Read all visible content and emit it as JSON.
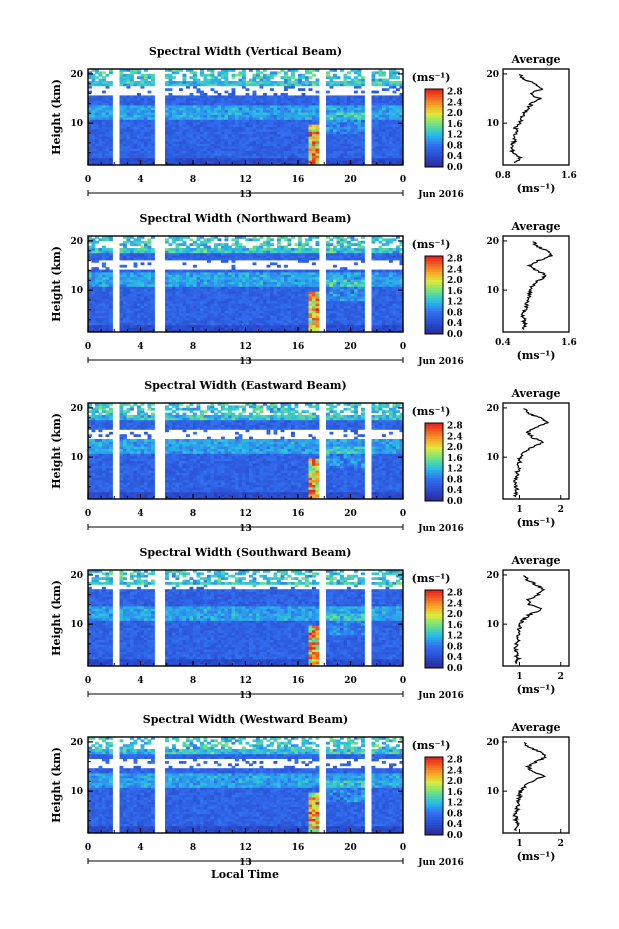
{
  "x_axis_label": "Local Time",
  "date_label": "Jun 2016",
  "date_marker": "13",
  "x_ticks": [
    "0",
    "4",
    "8",
    "12",
    "16",
    "20",
    "0"
  ],
  "y_ticks": [
    "20",
    "10"
  ],
  "height_label": "Height (km)",
  "colorbar": {
    "unit": "(ms⁻¹)",
    "ticks": [
      "2.8",
      "2.4",
      "2.0",
      "1.6",
      "1.2",
      "0.8",
      "0.4",
      "0.0"
    ],
    "range": [
      0,
      2.9
    ]
  },
  "average_title": "Average",
  "average_unit": "(ms⁻¹)",
  "colors": {
    "low": "#303e9a",
    "mid_low": "#3a78e8",
    "mid": "#35c8d8",
    "mid_high": "#a8e048",
    "high_yellow": "#f0d830",
    "high": "#ee3a22"
  },
  "chart_data": [
    {
      "type": "heatmap",
      "title": "Spectral Width (Vertical Beam)",
      "xlabel": "",
      "ylabel": "Height (km)",
      "xlim": [
        0,
        24
      ],
      "ylim": [
        1.5,
        21
      ],
      "data_gaps_hours": [
        [
          2.0,
          2.4
        ],
        [
          5.1,
          5.8
        ],
        [
          17.5,
          18.0
        ],
        [
          21.2,
          21.7
        ]
      ],
      "upper_gap_km": [
        15.5,
        17.5
      ],
      "average_profile": {
        "x_ticks": [
          "0.8",
          "1.6"
        ],
        "x_range": [
          0.8,
          1.6
        ],
        "y_ticks": [
          "20",
          "10"
        ],
        "height_km": [
          2,
          3,
          4,
          5,
          6,
          7,
          8,
          9,
          10,
          11,
          12,
          13,
          14,
          15,
          16,
          17,
          18,
          19,
          20
        ],
        "value": [
          0.95,
          1.0,
          0.92,
          0.9,
          0.93,
          0.94,
          0.96,
          0.95,
          1.0,
          1.02,
          1.05,
          1.1,
          1.15,
          1.25,
          1.12,
          1.28,
          1.2,
          1.05,
          1.0
        ]
      }
    },
    {
      "type": "heatmap",
      "title": "Spectral Width (Northward Beam)",
      "xlabel": "",
      "ylabel": "Height (km)",
      "xlim": [
        0,
        24
      ],
      "ylim": [
        1.5,
        21
      ],
      "data_gaps_hours": [
        [
          2.0,
          2.4
        ],
        [
          5.1,
          5.8
        ],
        [
          17.5,
          18.0
        ],
        [
          21.2,
          21.7
        ]
      ],
      "upper_gap_km": [
        14.0,
        16.0
      ],
      "average_profile": {
        "x_ticks": [
          "0.4",
          "1.6"
        ],
        "x_range": [
          0.4,
          1.6
        ],
        "y_ticks": [
          "20",
          "10"
        ],
        "height_km": [
          2,
          3,
          4,
          5,
          6,
          7,
          8,
          9,
          10,
          11,
          12,
          13,
          14,
          15,
          16,
          17,
          18,
          19,
          20
        ],
        "value": [
          0.75,
          0.8,
          0.78,
          0.76,
          0.8,
          0.82,
          0.85,
          0.88,
          0.9,
          0.95,
          1.05,
          1.2,
          1.0,
          0.9,
          1.05,
          1.3,
          1.2,
          1.0,
          0.95
        ]
      }
    },
    {
      "type": "heatmap",
      "title": "Spectral Width (Eastward Beam)",
      "xlabel": "",
      "ylabel": "Height (km)",
      "xlim": [
        0,
        24
      ],
      "ylim": [
        1.5,
        21
      ],
      "data_gaps_hours": [
        [
          2.0,
          2.4
        ],
        [
          5.1,
          5.8
        ],
        [
          17.5,
          18.0
        ],
        [
          21.2,
          21.7
        ]
      ],
      "upper_gap_km": [
        13.5,
        15.5
      ],
      "average_profile": {
        "x_ticks": [
          "1",
          "2"
        ],
        "x_range": [
          0.6,
          2.2
        ],
        "y_ticks": [
          "20",
          "10"
        ],
        "height_km": [
          2,
          3,
          4,
          5,
          6,
          7,
          8,
          9,
          10,
          11,
          12,
          13,
          14,
          15,
          16,
          17,
          18,
          19,
          20
        ],
        "value": [
          0.9,
          0.95,
          0.92,
          0.9,
          0.93,
          0.95,
          0.98,
          1.0,
          1.02,
          1.1,
          1.3,
          1.6,
          1.3,
          1.2,
          1.4,
          1.7,
          1.5,
          1.2,
          1.1
        ]
      }
    },
    {
      "type": "heatmap",
      "title": "Spectral Width (Southward Beam)",
      "xlabel": "",
      "ylabel": "Height (km)",
      "xlim": [
        0,
        24
      ],
      "ylim": [
        1.5,
        21
      ],
      "data_gaps_hours": [
        [
          2.0,
          2.4
        ],
        [
          5.1,
          5.8
        ],
        [
          17.5,
          18.0
        ],
        [
          21.2,
          21.7
        ]
      ],
      "upper_gap_km": [
        17.0,
        18.0
      ],
      "average_profile": {
        "x_ticks": [
          "1",
          "2"
        ],
        "x_range": [
          0.6,
          2.2
        ],
        "y_ticks": [
          "20",
          "10"
        ],
        "height_km": [
          2,
          3,
          4,
          5,
          6,
          7,
          8,
          9,
          10,
          11,
          12,
          13,
          14,
          15,
          16,
          17,
          18,
          19,
          20
        ],
        "value": [
          0.9,
          0.96,
          0.92,
          0.9,
          0.94,
          0.96,
          0.98,
          1.0,
          1.02,
          1.1,
          1.25,
          1.55,
          1.25,
          1.2,
          1.45,
          1.6,
          1.4,
          1.2,
          1.1
        ]
      }
    },
    {
      "type": "heatmap",
      "title": "Spectral Width (Westward Beam)",
      "xlabel": "",
      "ylabel": "Height (km)",
      "xlim": [
        0,
        24
      ],
      "ylim": [
        1.5,
        21
      ],
      "data_gaps_hours": [
        [
          2.0,
          2.4
        ],
        [
          5.1,
          5.8
        ],
        [
          17.5,
          18.0
        ],
        [
          21.2,
          21.7
        ]
      ],
      "upper_gap_km": [
        14.5,
        16.5
      ],
      "average_profile": {
        "x_ticks": [
          "1",
          "2"
        ],
        "x_range": [
          0.6,
          2.2
        ],
        "y_ticks": [
          "20",
          "10"
        ],
        "height_km": [
          2,
          3,
          4,
          5,
          6,
          7,
          8,
          9,
          10,
          11,
          12,
          13,
          14,
          15,
          16,
          17,
          18,
          19,
          20
        ],
        "value": [
          0.9,
          0.95,
          0.92,
          0.9,
          0.93,
          0.95,
          0.98,
          1.0,
          1.02,
          1.12,
          1.3,
          1.6,
          1.3,
          1.2,
          1.4,
          1.65,
          1.5,
          1.2,
          1.1
        ]
      }
    }
  ]
}
